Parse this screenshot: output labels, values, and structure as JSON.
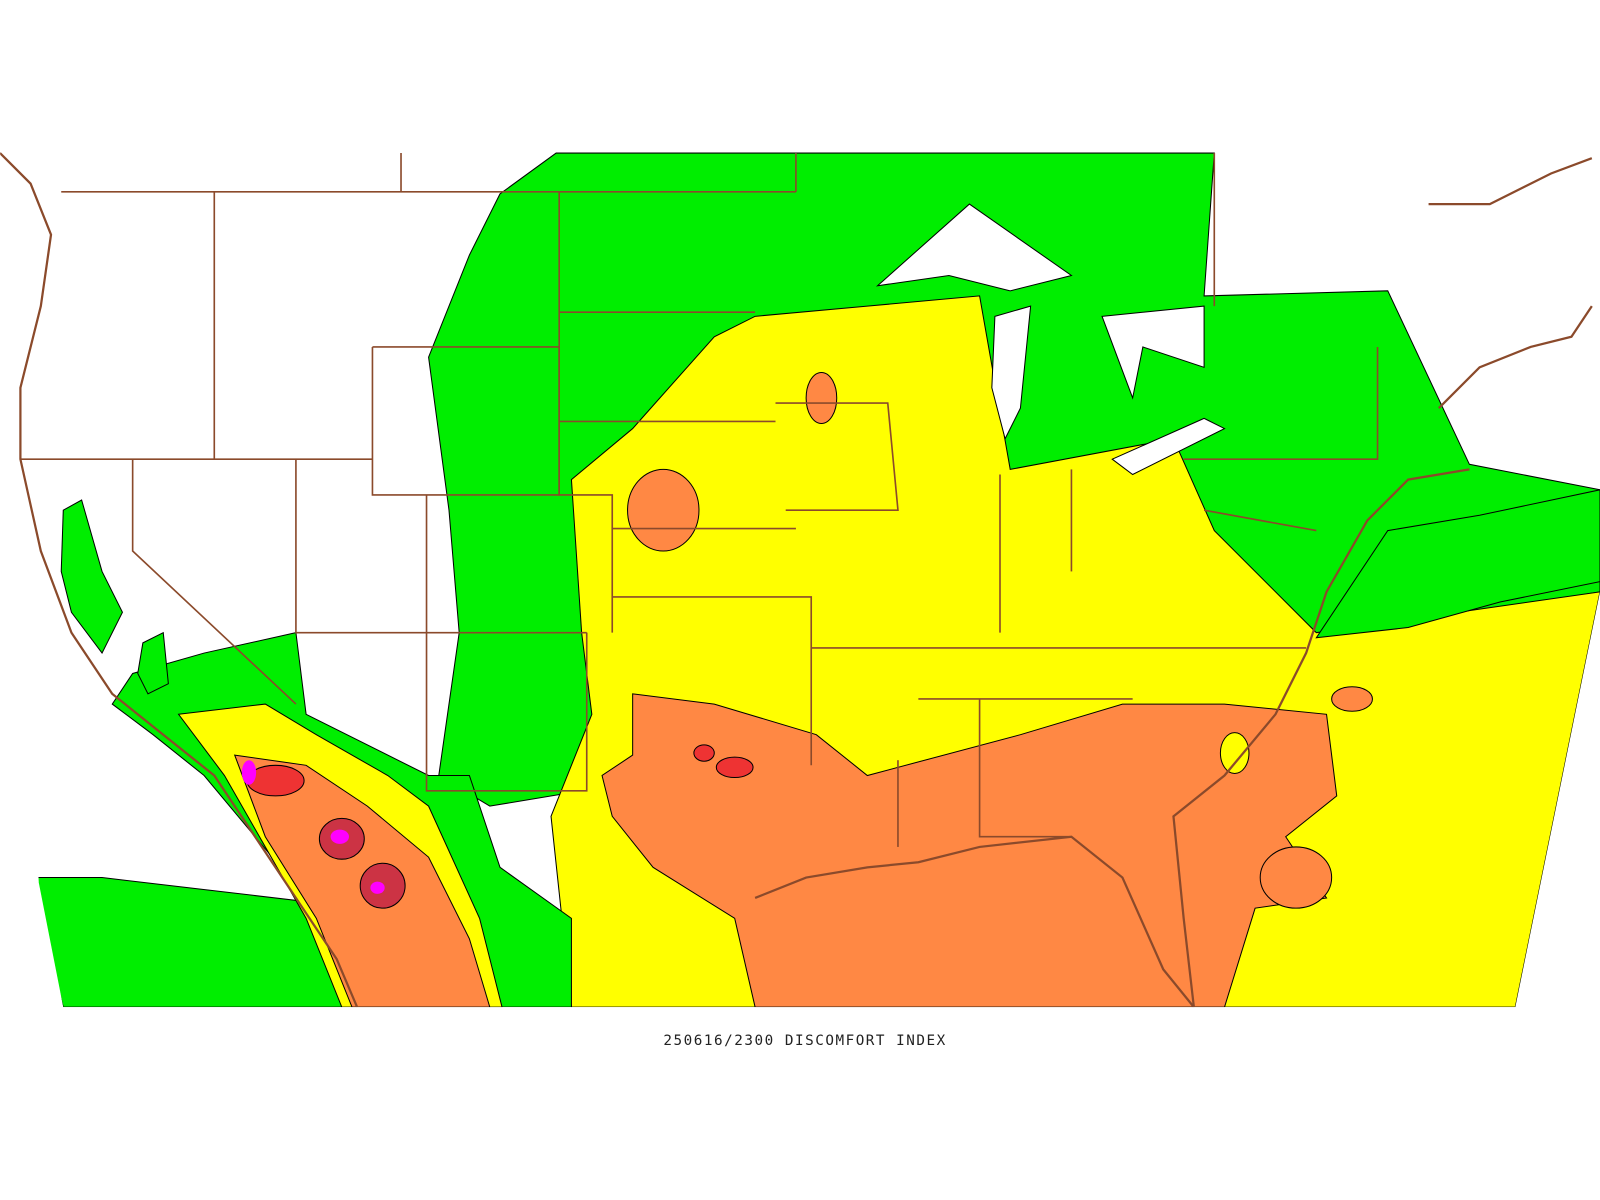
{
  "map": {
    "caption": "250616/2300 DISCOMFORT INDEX"
  }
}
